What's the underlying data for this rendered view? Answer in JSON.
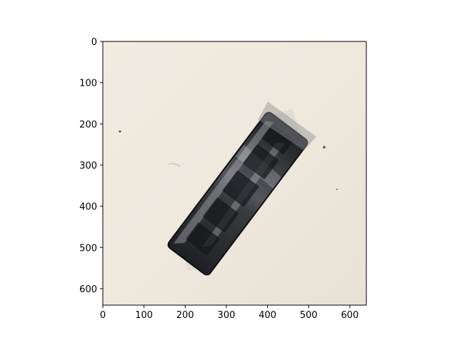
{
  "figure": {
    "image_description_icon": "photo-of-wrapped-dark-object-on-cream-surface",
    "background_color": "#efe9df",
    "object_color": "#2a2b2e",
    "axis_color": "#000000"
  },
  "axes": {
    "x_ticks": [
      0,
      100,
      200,
      300,
      400,
      500,
      600
    ],
    "y_ticks": [
      0,
      100,
      200,
      300,
      400,
      500,
      600
    ],
    "x_range": [
      0,
      640
    ],
    "y_range": [
      0,
      640
    ],
    "y_inverted": true
  }
}
